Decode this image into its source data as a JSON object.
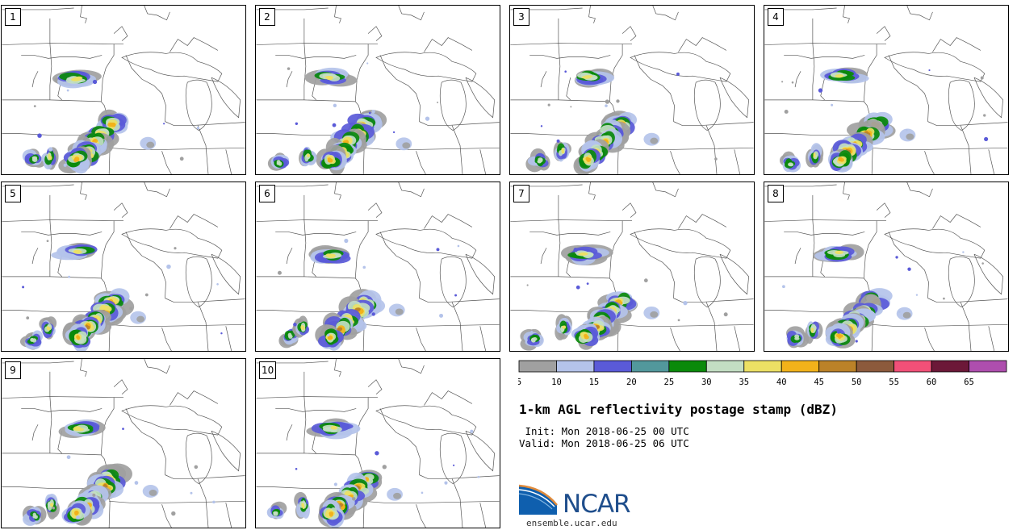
{
  "product": {
    "title": "1-km AGL reflectivity postage stamp (dBZ)",
    "init_line": " Init: Mon 2018-06-25 00 UTC",
    "valid_line": "Valid: Mon 2018-06-25 06 UTC"
  },
  "members": [
    "1",
    "2",
    "3",
    "4",
    "5",
    "6",
    "7",
    "8",
    "9",
    "10"
  ],
  "colorbar": {
    "ticks": [
      "5",
      "10",
      "15",
      "20",
      "25",
      "30",
      "35",
      "40",
      "45",
      "50",
      "55",
      "60",
      "65"
    ],
    "colors": [
      "#a0a0a0",
      "#b4c3ea",
      "#5a5ad8",
      "#52989c",
      "#0a8a0a",
      "#c3dec3",
      "#ece064",
      "#f2b21a",
      "#bb8228",
      "#8c5a3c",
      "#f25078",
      "#6c1838",
      "#ae4eae"
    ]
  },
  "logo": {
    "name": "NCAR",
    "url": "ensemble.ucar.edu"
  }
}
